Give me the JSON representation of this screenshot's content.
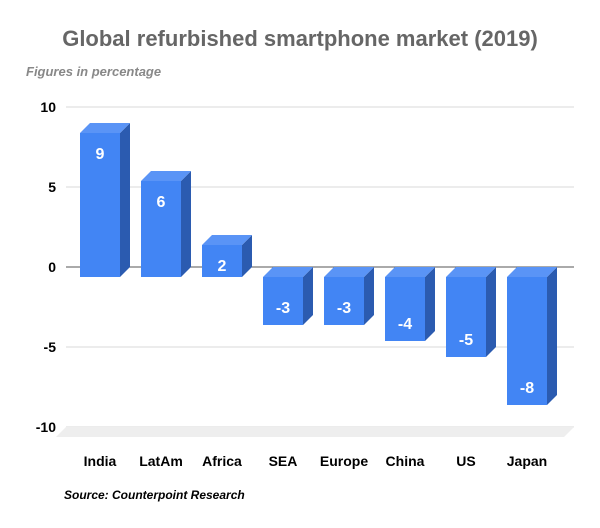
{
  "chart_data": {
    "type": "bar",
    "title": "Global refurbished smartphone market (2019)",
    "subtitle": "Figures in percentage",
    "source": "Source: Counterpoint Research",
    "categories": [
      "India",
      "LatAm",
      "Africa",
      "SEA",
      "Europe",
      "China",
      "US",
      "Japan"
    ],
    "values": [
      9,
      6,
      2,
      -3,
      -3,
      -4,
      -5,
      -8
    ],
    "data_labels": [
      "9",
      "6",
      "2",
      "-3",
      "-3",
      "-4",
      "-5",
      "-8"
    ],
    "ylim": [
      -10,
      10
    ],
    "yticks": [
      10,
      5,
      0,
      -5,
      -10
    ],
    "ytick_labels": [
      "10",
      "5",
      "0",
      "-5",
      "-10"
    ],
    "xlabel": "",
    "ylabel": "",
    "grid": true,
    "legend": "none",
    "style": "3d-bar",
    "colors": {
      "bar_front": "#4285f4",
      "bar_side": "#2b5bb0",
      "bar_top": "#5a94f6",
      "grid": "#d9d9d9",
      "floor": "#eeeeee",
      "title": "#666666"
    }
  }
}
